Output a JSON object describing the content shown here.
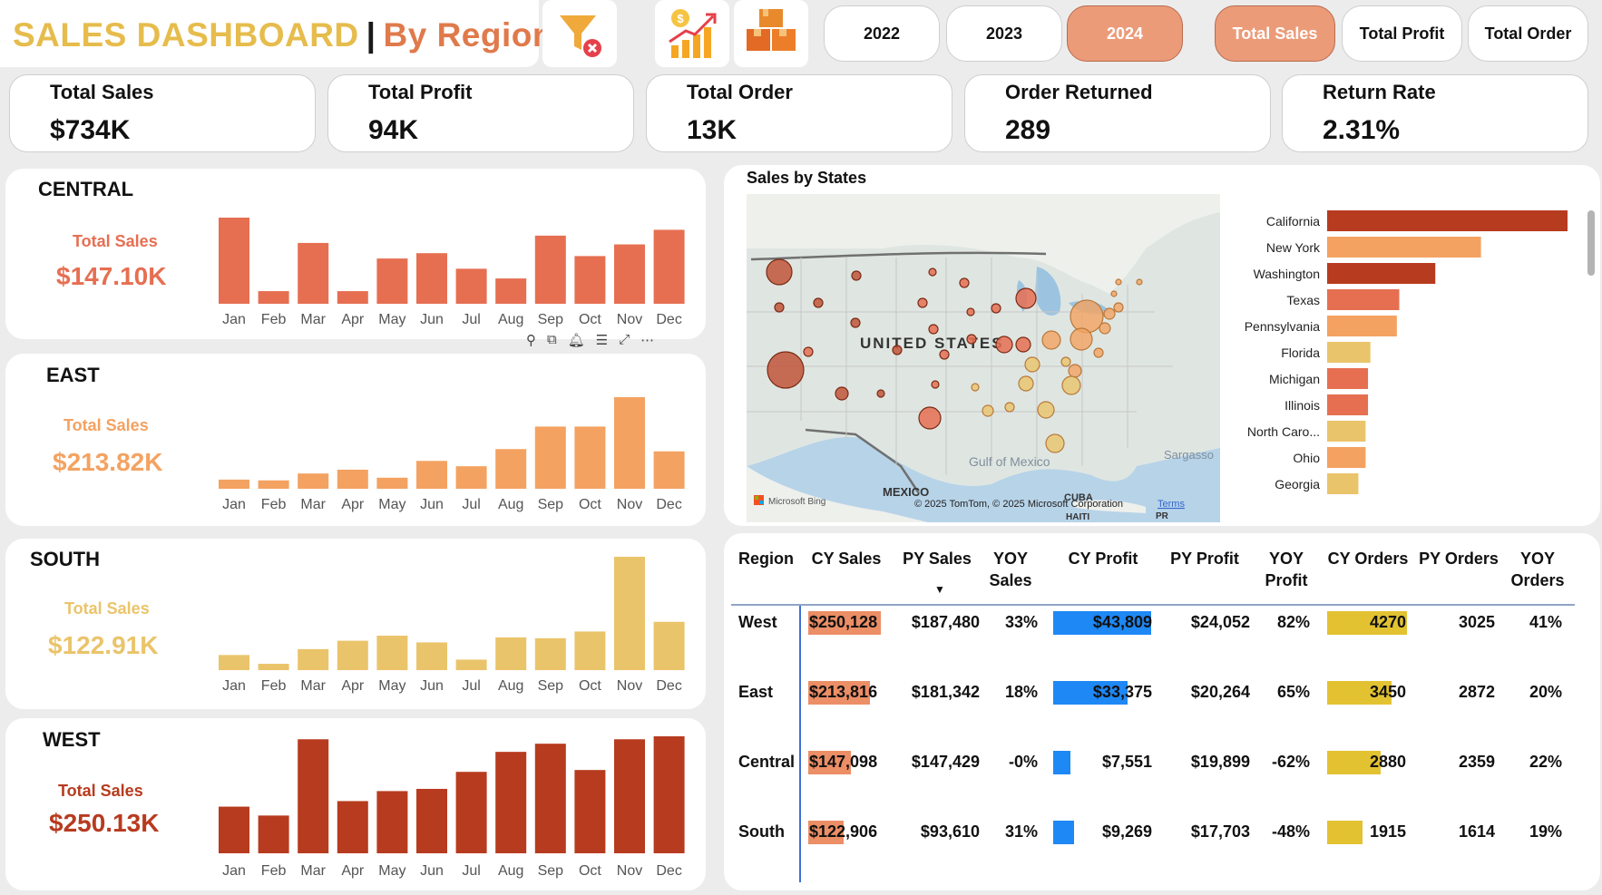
{
  "header": {
    "title": "SALES DASHBOARD",
    "separator": "|",
    "subtitle": "By Regions",
    "icons": [
      "filter-clear-icon",
      "sales-growth-icon",
      "orders-boxes-icon"
    ]
  },
  "year_filters": [
    {
      "label": "2022",
      "active": false
    },
    {
      "label": "2023",
      "active": false
    },
    {
      "label": "2024",
      "active": true
    }
  ],
  "measure_filters": [
    {
      "label": "Total Sales",
      "active": true
    },
    {
      "label": "Total Profit",
      "active": false
    },
    {
      "label": "Total Order",
      "active": false
    }
  ],
  "kpis": [
    {
      "label": "Total Sales",
      "value": "$734K"
    },
    {
      "label": "Total Profit",
      "value": "94K"
    },
    {
      "label": "Total Order",
      "value": "13K"
    },
    {
      "label": "Order Returned",
      "value": "289"
    },
    {
      "label": "Return Rate",
      "value": "2.31%"
    }
  ],
  "regions": [
    {
      "name": "CENTRAL",
      "total_label": "Total Sales",
      "total_value": "$147.10K",
      "color": "#e66f52",
      "chart_data": {
        "type": "bar",
        "categories": [
          "Jan",
          "Feb",
          "Mar",
          "Apr",
          "May",
          "Jun",
          "Jul",
          "Aug",
          "Sep",
          "Oct",
          "Nov",
          "Dec"
        ],
        "values": [
          17.7,
          2.6,
          12.5,
          2.6,
          9.3,
          10.4,
          7.2,
          5.2,
          14.0,
          9.8,
          12.2,
          15.2
        ]
      }
    },
    {
      "name": "EAST",
      "total_label": "Total Sales",
      "total_value": "$213.82K",
      "color": "#f4a261",
      "chart_data": {
        "type": "bar",
        "categories": [
          "Jan",
          "Feb",
          "Mar",
          "Apr",
          "May",
          "Jun",
          "Jul",
          "Aug",
          "Sep",
          "Oct",
          "Nov",
          "Dec"
        ],
        "values": [
          2.4,
          2.2,
          4.0,
          5.0,
          2.9,
          7.3,
          5.9,
          10.4,
          16.3,
          16.3,
          24.0,
          9.8
        ]
      }
    },
    {
      "name": "SOUTH",
      "total_label": "Total Sales",
      "total_value": "$122.91K",
      "color": "#eac46a",
      "chart_data": {
        "type": "bar",
        "categories": [
          "Jan",
          "Feb",
          "Mar",
          "Apr",
          "May",
          "Jun",
          "Jul",
          "Aug",
          "Sep",
          "Oct",
          "Nov",
          "Dec"
        ],
        "values": [
          3.6,
          1.5,
          5.0,
          7.0,
          8.2,
          6.6,
          2.5,
          7.8,
          7.6,
          9.2,
          27.0,
          11.5
        ]
      }
    },
    {
      "name": "WEST",
      "total_label": "Total Sales",
      "total_value": "$250.13K",
      "color": "#b73b1f",
      "chart_data": {
        "type": "bar",
        "categories": [
          "Jan",
          "Feb",
          "Mar",
          "Apr",
          "May",
          "Jun",
          "Jul",
          "Aug",
          "Sep",
          "Oct",
          "Nov",
          "Dec"
        ],
        "values": [
          12.6,
          10.2,
          30.8,
          14.1,
          16.8,
          17.4,
          22.0,
          27.4,
          29.6,
          22.5,
          30.8,
          31.6
        ]
      }
    }
  ],
  "visual_toolbar": [
    "pin-icon",
    "copy-icon",
    "bell-icon",
    "filter-icon",
    "expand-icon",
    "more-icon"
  ],
  "map": {
    "title": "Sales by States",
    "country_label": "UNITED STATES",
    "water_labels": [
      "Gulf of Mexico",
      "Sargasso"
    ],
    "place_labels": [
      "MEXICO",
      "CUBA",
      "HAITI",
      "PR"
    ],
    "attribution": "© 2025 TomTom, © 2025 Microsoft Corporation",
    "terms": "Terms",
    "logo": "Microsoft Bing"
  },
  "state_bars": {
    "type": "bar",
    "categories": [
      "California",
      "New York",
      "Washington",
      "Texas",
      "Pennsylvania",
      "Florida",
      "Michigan",
      "Illinois",
      "North Caro...",
      "Ohio",
      "Georgia"
    ],
    "values": [
      100,
      64,
      45,
      30,
      29,
      18,
      17,
      17,
      16,
      16,
      13
    ],
    "colors": [
      "#b73b1f",
      "#f4a261",
      "#b73b1f",
      "#e66f52",
      "#f4a261",
      "#eac46a",
      "#e66f52",
      "#e66f52",
      "#eac46a",
      "#f4a261",
      "#eac46a"
    ]
  },
  "table": {
    "headers": [
      "Region",
      "CY Sales",
      "PY Sales",
      "YOY Sales",
      "CY Profit",
      "PY Profit",
      "YOY Profit",
      "CY Orders",
      "PY Orders",
      "YOY Orders"
    ],
    "sort_indicator": "▼",
    "rows": [
      {
        "region": "West",
        "cy_sales": "$250,128",
        "py_sales": "$187,480",
        "yoy_sales": "33%",
        "cy_profit": "$43,809",
        "py_profit": "$24,052",
        "yoy_profit": "82%",
        "cy_orders": "4270",
        "py_orders": "3025",
        "yoy_orders": "41%",
        "sales_frac": 1.0,
        "profit_frac": 1.0,
        "orders_frac": 1.0
      },
      {
        "region": "East",
        "cy_sales": "$213,816",
        "py_sales": "$181,342",
        "yoy_sales": "18%",
        "cy_profit": "$33,375",
        "py_profit": "$20,264",
        "yoy_profit": "65%",
        "cy_orders": "3450",
        "py_orders": "2872",
        "yoy_orders": "20%",
        "sales_frac": 0.855,
        "profit_frac": 0.762,
        "orders_frac": 0.808
      },
      {
        "region": "Central",
        "cy_sales": "$147,098",
        "py_sales": "$147,429",
        "yoy_sales": "-0%",
        "cy_profit": "$7,551",
        "py_profit": "$19,899",
        "yoy_profit": "-62%",
        "cy_orders": "2880",
        "py_orders": "2359",
        "yoy_orders": "22%",
        "sales_frac": 0.588,
        "profit_frac": 0.172,
        "orders_frac": 0.674
      },
      {
        "region": "South",
        "cy_sales": "$122,906",
        "py_sales": "$93,610",
        "yoy_sales": "31%",
        "cy_profit": "$9,269",
        "py_profit": "$17,703",
        "yoy_profit": "-48%",
        "cy_orders": "1915",
        "py_orders": "1614",
        "yoy_orders": "19%",
        "sales_frac": 0.491,
        "profit_frac": 0.212,
        "orders_frac": 0.448
      }
    ],
    "bar_colors": {
      "sales": "#ec8e66",
      "profit": "#1e88f5",
      "orders": "#e3c232"
    }
  }
}
